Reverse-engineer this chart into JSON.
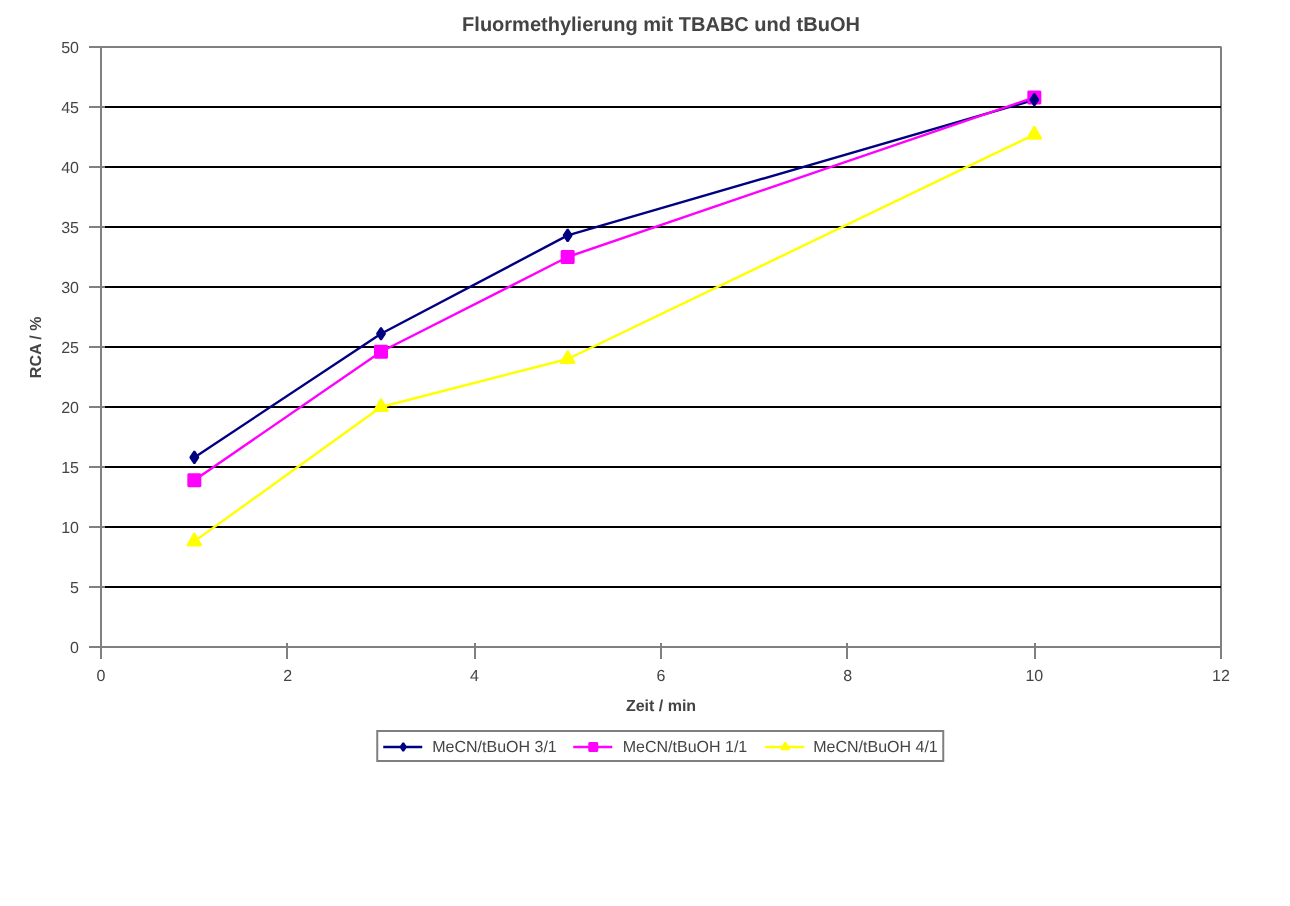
{
  "chart_data": {
    "type": "line",
    "title": "Fluormethylierung mit TBABC und tBuOH",
    "xlabel": "Zeit / min",
    "ylabel": "RCA / %",
    "x": [
      1,
      3,
      5,
      10
    ],
    "series": [
      {
        "name": "MeCN/tBuOH 3/1",
        "color": "#000080",
        "marker": "diamond",
        "values": [
          15.8,
          26.1,
          34.3,
          45.6
        ]
      },
      {
        "name": "MeCN/tBuOH 1/1",
        "color": "#ff00ff",
        "marker": "square",
        "values": [
          13.9,
          24.6,
          32.5,
          45.8
        ]
      },
      {
        "name": "MeCN/tBuOH 4/1",
        "color": "#ffff00",
        "marker": "triangle",
        "values": [
          8.8,
          20.0,
          24.0,
          42.7
        ]
      }
    ],
    "xlim": [
      0,
      12
    ],
    "xticks": [
      0,
      2,
      4,
      6,
      8,
      10,
      12
    ],
    "ylim": [
      0,
      50
    ],
    "yticks": [
      0,
      5,
      10,
      15,
      20,
      25,
      30,
      35,
      40,
      45,
      50
    ],
    "grid": "y",
    "legend": "bottom",
    "line_style": "solid"
  }
}
